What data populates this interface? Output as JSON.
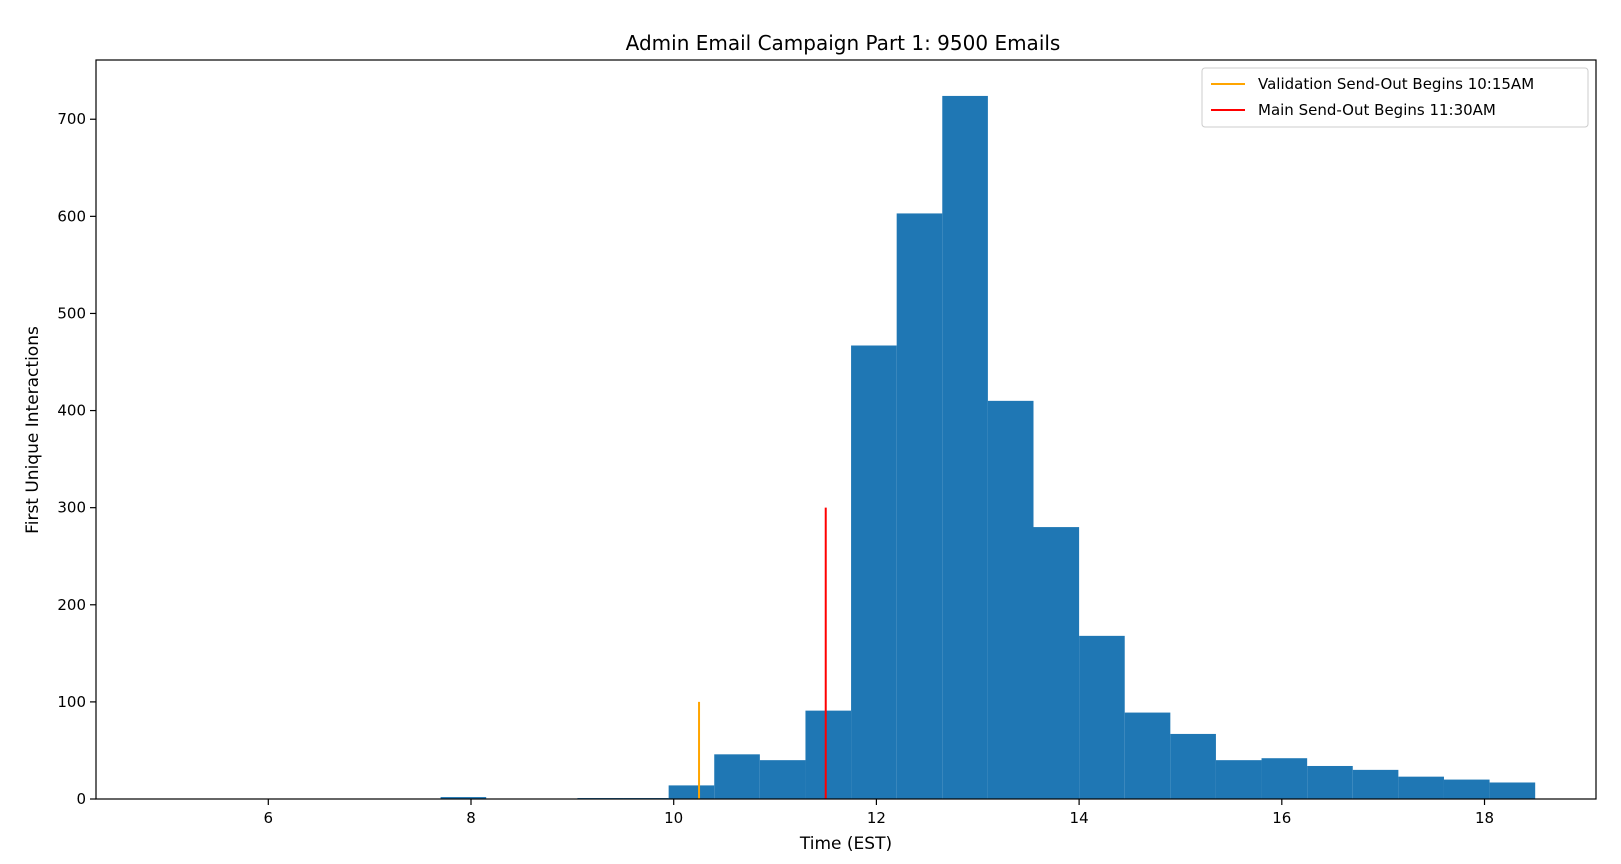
{
  "chart_data": {
    "type": "bar",
    "title": "Admin Email Campaign Part 1: 9500 Emails",
    "xlabel": "Time (EST)",
    "ylabel": "First Unique Interactions",
    "xlim": [
      4.3,
      19.1
    ],
    "ylim": [
      0,
      761
    ],
    "x_ticks": [
      6,
      8,
      10,
      12,
      14,
      16,
      18
    ],
    "y_ticks": [
      0,
      100,
      200,
      300,
      400,
      500,
      600,
      700
    ],
    "bar_color": "#1f77b4",
    "bins": [
      {
        "start": 7.7,
        "end": 8.15,
        "value": 2
      },
      {
        "start": 9.05,
        "end": 9.5,
        "value": 1
      },
      {
        "start": 9.5,
        "end": 9.95,
        "value": 1
      },
      {
        "start": 9.95,
        "end": 10.4,
        "value": 14
      },
      {
        "start": 10.4,
        "end": 10.85,
        "value": 46
      },
      {
        "start": 10.85,
        "end": 11.3,
        "value": 40
      },
      {
        "start": 11.3,
        "end": 11.75,
        "value": 91
      },
      {
        "start": 11.75,
        "end": 12.2,
        "value": 467
      },
      {
        "start": 12.2,
        "end": 12.65,
        "value": 603
      },
      {
        "start": 12.65,
        "end": 13.1,
        "value": 724
      },
      {
        "start": 13.1,
        "end": 13.55,
        "value": 410
      },
      {
        "start": 13.55,
        "end": 14.0,
        "value": 280
      },
      {
        "start": 14.0,
        "end": 14.45,
        "value": 168
      },
      {
        "start": 14.45,
        "end": 14.9,
        "value": 89
      },
      {
        "start": 14.9,
        "end": 15.35,
        "value": 67
      },
      {
        "start": 15.35,
        "end": 15.8,
        "value": 40
      },
      {
        "start": 15.8,
        "end": 16.25,
        "value": 42
      },
      {
        "start": 16.25,
        "end": 16.7,
        "value": 34
      },
      {
        "start": 16.7,
        "end": 17.15,
        "value": 30
      },
      {
        "start": 17.15,
        "end": 17.6,
        "value": 23
      },
      {
        "start": 17.6,
        "end": 18.05,
        "value": 20
      },
      {
        "start": 18.05,
        "end": 18.5,
        "value": 17
      }
    ],
    "vlines": [
      {
        "name": "Validation Send-Out Begins 10:15AM",
        "x": 10.25,
        "ymax": 100,
        "color": "#ffa500"
      },
      {
        "name": "Main Send-Out Begins 11:30AM",
        "x": 11.5,
        "ymax": 300,
        "color": "#ff0000"
      }
    ],
    "legend_position": "top-right",
    "grid": false
  }
}
